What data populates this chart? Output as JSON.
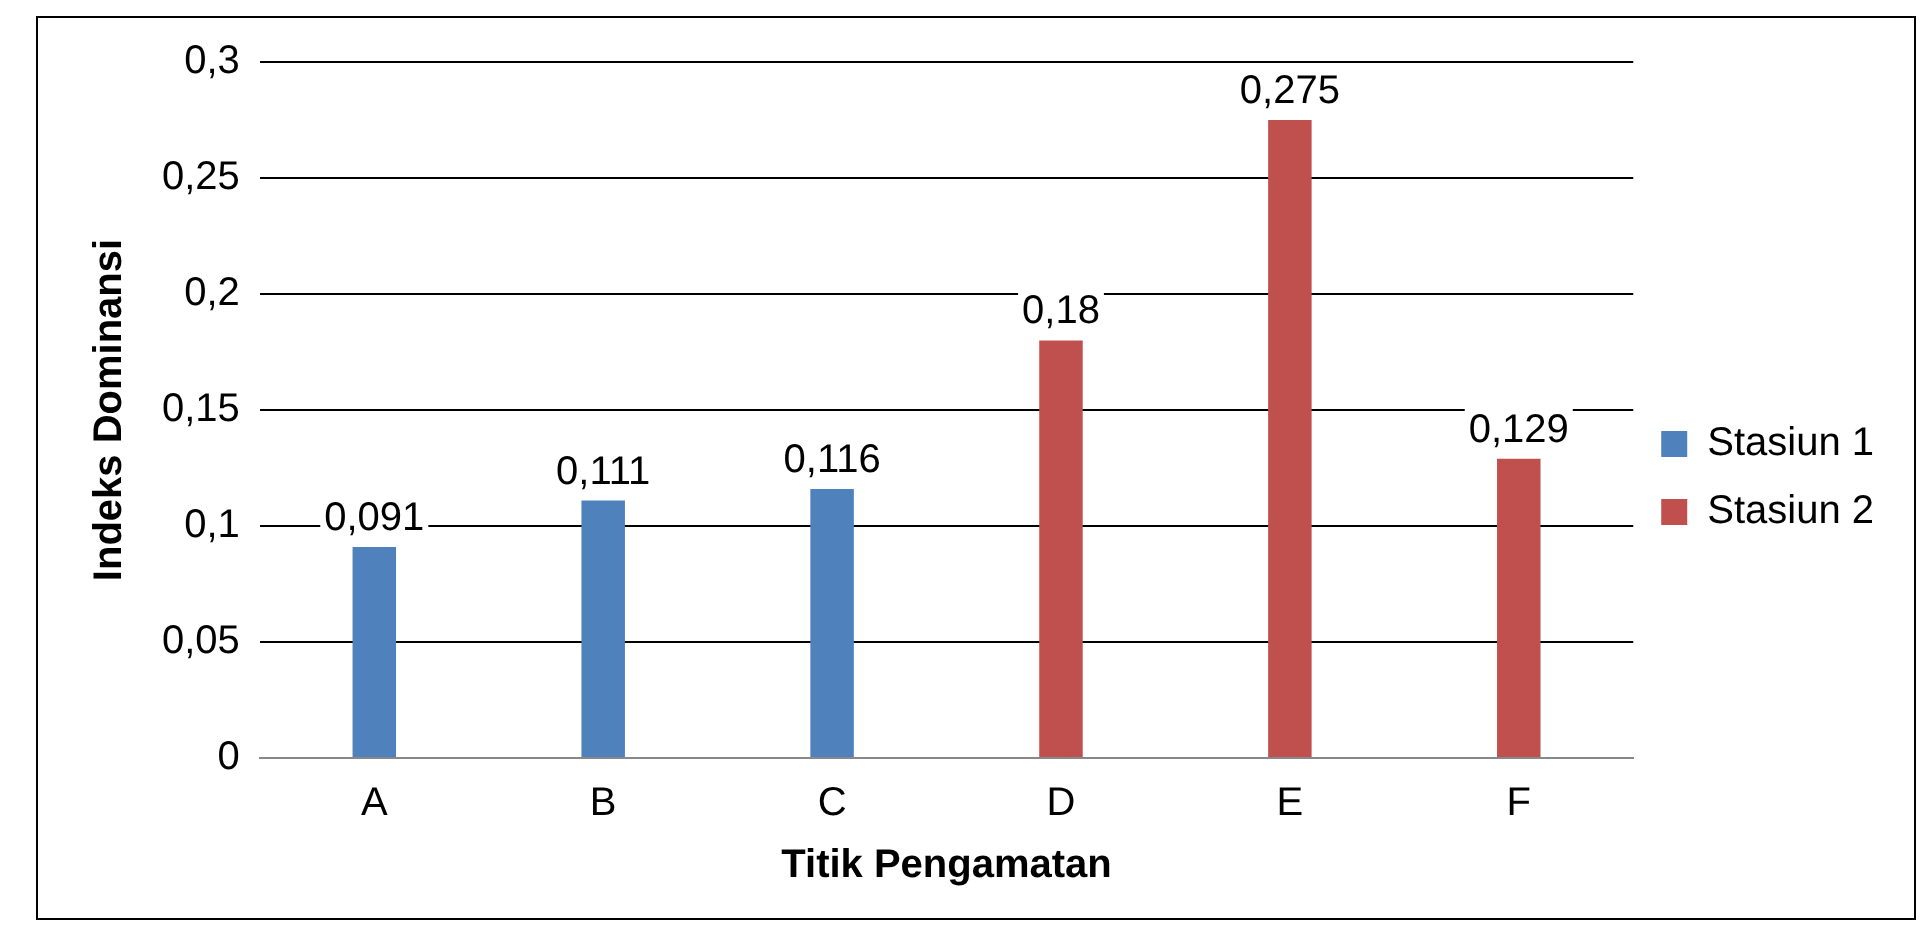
{
  "chart_data": {
    "type": "bar",
    "xlabel": "Titik Pengamatan",
    "ylabel": "Indeks Dominansi",
    "categories": [
      "A",
      "B",
      "C",
      "D",
      "E",
      "F"
    ],
    "series": [
      {
        "name": "Stasiun 1",
        "color": "#4f81bd",
        "values": [
          0.091,
          0.111,
          0.116,
          null,
          null,
          null
        ],
        "value_labels": [
          "0,091",
          "0,111",
          "0,116",
          null,
          null,
          null
        ]
      },
      {
        "name": "Stasiun 2",
        "color": "#c0504d",
        "values": [
          null,
          null,
          null,
          0.18,
          0.275,
          0.129
        ],
        "value_labels": [
          null,
          null,
          null,
          "0,18",
          "0,275",
          "0,129"
        ]
      }
    ],
    "ylim": [
      0,
      0.3
    ],
    "yticks": [
      {
        "value": 0,
        "label": "0"
      },
      {
        "value": 0.05,
        "label": "0,05"
      },
      {
        "value": 0.1,
        "label": "0,1"
      },
      {
        "value": 0.15,
        "label": "0,15"
      },
      {
        "value": 0.2,
        "label": "0,2"
      },
      {
        "value": 0.25,
        "label": "0,25"
      },
      {
        "value": 0.3,
        "label": "0,3"
      }
    ],
    "grid": "y",
    "legend": "right"
  }
}
